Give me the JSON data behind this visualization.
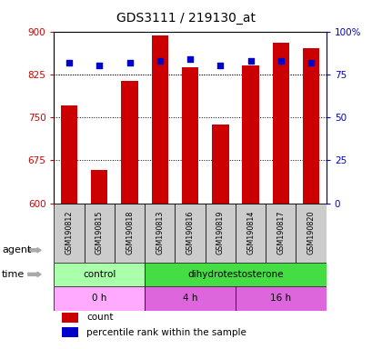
{
  "title": "GDS3111 / 219130_at",
  "samples": [
    "GSM190812",
    "GSM190815",
    "GSM190818",
    "GSM190813",
    "GSM190816",
    "GSM190819",
    "GSM190814",
    "GSM190817",
    "GSM190820"
  ],
  "count_values": [
    770,
    658,
    813,
    893,
    838,
    737,
    840,
    880,
    870
  ],
  "percentile_values": [
    82,
    80,
    82,
    83,
    84,
    80,
    83,
    83,
    82
  ],
  "ylim_left": [
    600,
    900
  ],
  "ylim_right": [
    0,
    100
  ],
  "yticks_left": [
    600,
    675,
    750,
    825,
    900
  ],
  "yticks_right": [
    0,
    25,
    50,
    75,
    100
  ],
  "ytick_labels_right": [
    "0",
    "25",
    "50",
    "75",
    "100%"
  ],
  "bar_color": "#cc0000",
  "dot_color": "#0000cc",
  "title_color": "black",
  "left_tick_color": "#cc0000",
  "right_tick_color": "#0000cc",
  "agent_groups": [
    {
      "label": "control",
      "start": 0,
      "end": 3,
      "color": "#aaffaa"
    },
    {
      "label": "dihydrotestosterone",
      "start": 3,
      "end": 9,
      "color": "#44dd44"
    }
  ],
  "time_groups": [
    {
      "label": "0 h",
      "start": 0,
      "end": 3,
      "color": "#ffaaff"
    },
    {
      "label": "4 h",
      "start": 3,
      "end": 6,
      "color": "#dd66dd"
    },
    {
      "label": "16 h",
      "start": 6,
      "end": 9,
      "color": "#dd66dd"
    }
  ],
  "legend_items": [
    {
      "color": "#cc0000",
      "label": "count"
    },
    {
      "color": "#0000cc",
      "label": "percentile rank within the sample"
    }
  ],
  "bg_color": "#ffffff",
  "sample_box_color": "#cccccc",
  "bar_width": 0.55
}
